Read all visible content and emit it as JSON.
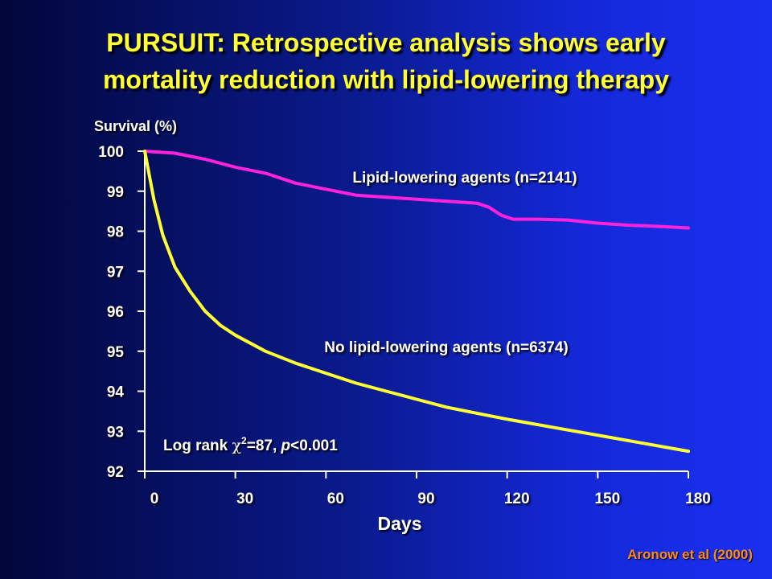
{
  "slide": {
    "title_line1": "PURSUIT: Retrospective analysis shows early",
    "title_line2": "mortality reduction with lipid-lowering therapy",
    "citation": "Aronow et al  (2000)"
  },
  "chart_data": {
    "type": "line",
    "title": "",
    "ylabel": "Survival (%)",
    "xlabel": "Days",
    "xlim": [
      0,
      180
    ],
    "ylim": [
      92,
      100
    ],
    "x_ticks": [
      0,
      30,
      60,
      90,
      120,
      150,
      180
    ],
    "y_ticks": [
      92,
      93,
      94,
      95,
      96,
      97,
      98,
      99,
      100
    ],
    "grid": false,
    "series": [
      {
        "name": "Lipid-lowering agents (n=2141)",
        "color": "#ff22dd",
        "points": [
          [
            0,
            100
          ],
          [
            10,
            99.95
          ],
          [
            20,
            99.8
          ],
          [
            30,
            99.6
          ],
          [
            40,
            99.45
          ],
          [
            50,
            99.2
          ],
          [
            60,
            99.05
          ],
          [
            70,
            98.9
          ],
          [
            80,
            98.85
          ],
          [
            90,
            98.8
          ],
          [
            100,
            98.75
          ],
          [
            110,
            98.7
          ],
          [
            114,
            98.6
          ],
          [
            118,
            98.4
          ],
          [
            122,
            98.3
          ],
          [
            130,
            98.3
          ],
          [
            140,
            98.28
          ],
          [
            150,
            98.2
          ],
          [
            160,
            98.15
          ],
          [
            170,
            98.12
          ],
          [
            180,
            98.08
          ]
        ]
      },
      {
        "name": "No lipid-lowering agents (n=6374)",
        "color": "#ffff33",
        "points": [
          [
            0,
            100
          ],
          [
            3,
            98.8
          ],
          [
            6,
            97.9
          ],
          [
            10,
            97.1
          ],
          [
            15,
            96.5
          ],
          [
            20,
            96.0
          ],
          [
            25,
            95.65
          ],
          [
            30,
            95.4
          ],
          [
            40,
            95.0
          ],
          [
            50,
            94.7
          ],
          [
            60,
            94.45
          ],
          [
            70,
            94.2
          ],
          [
            80,
            94.0
          ],
          [
            90,
            93.8
          ],
          [
            100,
            93.6
          ],
          [
            110,
            93.45
          ],
          [
            120,
            93.3
          ],
          [
            135,
            93.1
          ],
          [
            150,
            92.9
          ],
          [
            165,
            92.7
          ],
          [
            180,
            92.5
          ]
        ]
      }
    ],
    "annotation": {
      "prefix": "Log rank ",
      "chi": "χ",
      "exponent": "2",
      "mid": "=87, ",
      "p": "p",
      "suffix": "<0.001"
    }
  }
}
